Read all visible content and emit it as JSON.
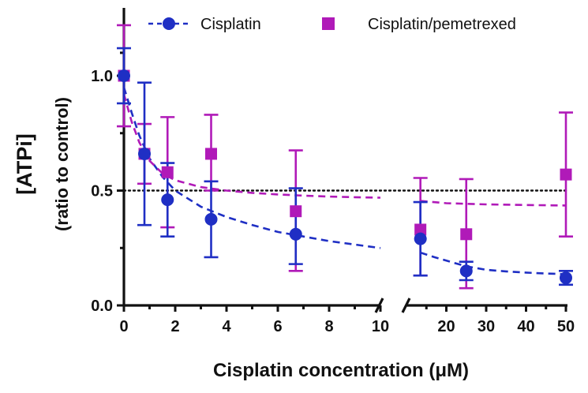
{
  "chart_data": {
    "type": "scatter",
    "xlabel": "Cisplatin concentration (μM)",
    "ylabel_line1": "[ATPi]",
    "ylabel_line2": "(ratio to control)",
    "x_ticks_left": [
      "0",
      "2",
      "4",
      "6",
      "8",
      "10"
    ],
    "x_ticks_right": [
      "20",
      "30",
      "40",
      "50"
    ],
    "y_ticks": [
      "0.0",
      "0.5",
      "1.0"
    ],
    "xlim_left": [
      0,
      10
    ],
    "xlim_right": [
      10,
      50
    ],
    "x_break": true,
    "ylim": [
      0,
      1.2
    ],
    "reference_line_y": 0.5,
    "legend_position": "top",
    "series": [
      {
        "name": "Cisplatin",
        "color": "#1f2fc4",
        "marker": "circle",
        "x": [
          0,
          0.8,
          1.7,
          3.4,
          6.7,
          13.5,
          25,
          50
        ],
        "y": [
          1.0,
          0.66,
          0.46,
          0.375,
          0.31,
          0.29,
          0.15,
          0.12
        ],
        "err_upper": [
          1.12,
          0.97,
          0.62,
          0.54,
          0.51,
          0.45,
          0.19,
          0.15
        ],
        "err_lower": [
          0.88,
          0.35,
          0.3,
          0.21,
          0.18,
          0.13,
          0.11,
          0.09
        ],
        "fit_x": [
          0,
          0.3,
          0.6,
          1,
          1.5,
          2,
          3,
          4,
          5,
          6,
          7,
          8,
          9,
          10,
          13.5,
          17,
          21,
          25,
          30,
          35,
          40,
          45,
          50
        ],
        "fit_y": [
          0.95,
          0.84,
          0.74,
          0.64,
          0.56,
          0.5,
          0.43,
          0.385,
          0.35,
          0.32,
          0.3,
          0.28,
          0.265,
          0.25,
          0.23,
          0.21,
          0.19,
          0.17,
          0.155,
          0.148,
          0.143,
          0.139,
          0.136
        ]
      },
      {
        "name": "Cisplatin/pemetrexed",
        "color": "#b01ab8",
        "marker": "square",
        "x": [
          0,
          0.8,
          1.7,
          3.4,
          6.7,
          13.5,
          25,
          50
        ],
        "y": [
          1.0,
          0.66,
          0.58,
          0.66,
          0.41,
          0.33,
          0.31,
          0.57
        ],
        "err_upper": [
          1.22,
          0.79,
          0.82,
          0.83,
          0.675,
          0.555,
          0.55,
          0.84
        ],
        "err_lower": [
          0.78,
          0.53,
          0.34,
          0.5,
          0.15,
          0.13,
          0.075,
          0.3
        ],
        "fit_x": [
          0,
          0.3,
          0.6,
          1,
          1.5,
          2,
          3,
          4,
          5,
          6,
          7,
          8,
          9,
          10,
          13.5,
          20,
          30,
          40,
          50
        ],
        "fit_y": [
          0.92,
          0.8,
          0.71,
          0.63,
          0.575,
          0.545,
          0.515,
          0.5,
          0.49,
          0.483,
          0.478,
          0.474,
          0.471,
          0.469,
          0.455,
          0.445,
          0.44,
          0.437,
          0.435
        ]
      }
    ]
  }
}
